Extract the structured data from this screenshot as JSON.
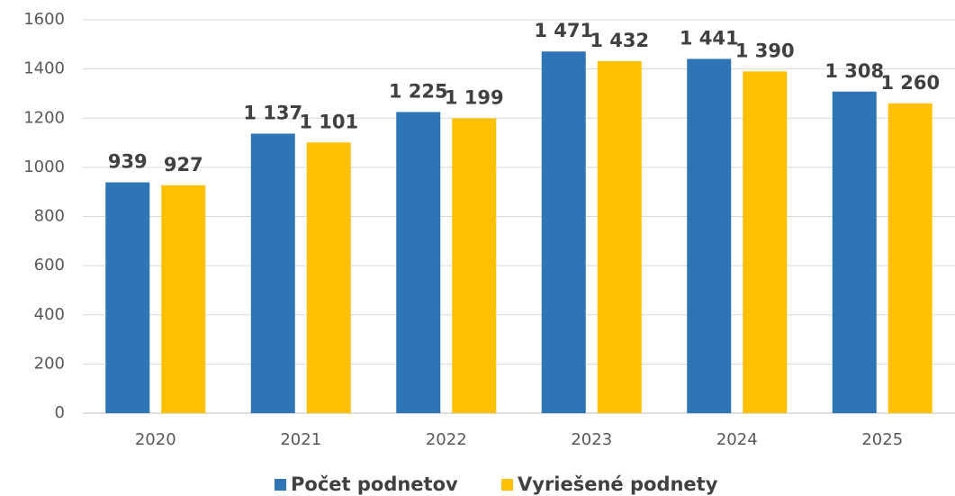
{
  "chart_data": {
    "type": "bar",
    "categories": [
      "2020",
      "2021",
      "2022",
      "2023",
      "2024",
      "2025"
    ],
    "series": [
      {
        "name": "Počet podnetov",
        "color": "#2e75b6",
        "values": [
          939,
          1137,
          1225,
          1471,
          1441,
          1308
        ],
        "value_labels": [
          "939",
          "1 137",
          "1 225",
          "1 471",
          "1 441",
          "1 308"
        ]
      },
      {
        "name": "Vyriešené podnety",
        "color": "#ffc000",
        "values": [
          927,
          1101,
          1199,
          1432,
          1390,
          1260
        ],
        "value_labels": [
          "927",
          "1 101",
          "1 199",
          "1 432",
          "1 390",
          "1 260"
        ]
      }
    ],
    "ylim": [
      0,
      1600
    ],
    "yticks": [
      0,
      200,
      400,
      600,
      800,
      1000,
      1200,
      1400,
      1600
    ],
    "grid": true,
    "legend": "bottom"
  }
}
